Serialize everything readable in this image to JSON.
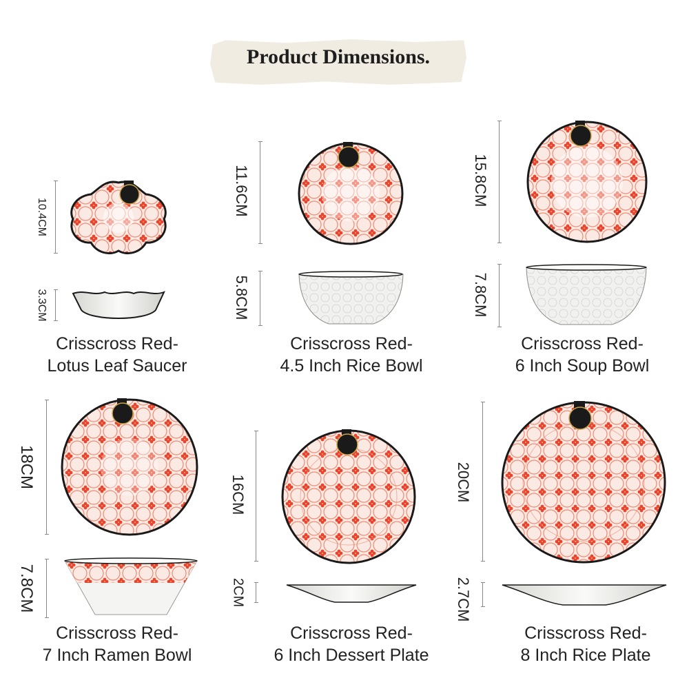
{
  "header": {
    "title": "Product Dimensions."
  },
  "products": [
    {
      "line1": "Crisscross Red-",
      "line2": "Lotus Leaf Saucer",
      "top_dim": "10.4CM",
      "side_dim": "3.3CM"
    },
    {
      "line1": "Crisscross Red-",
      "line2": "4.5 Inch Rice Bowl",
      "top_dim": "11.6CM",
      "side_dim": "5.8CM"
    },
    {
      "line1": "Crisscross Red-",
      "line2": "6 Inch Soup Bowl",
      "top_dim": "15.8CM",
      "side_dim": "7.8CM"
    },
    {
      "line1": "Crisscross Red-",
      "line2": "7 Inch Ramen Bowl",
      "top_dim": "18CM",
      "side_dim": "7.8CM"
    },
    {
      "line1": "Crisscross Red-",
      "line2": "6 Inch Dessert Plate",
      "top_dim": "16CM",
      "side_dim": "2CM"
    },
    {
      "line1": "Crisscross Red-",
      "line2": "8 Inch Rice Plate",
      "top_dim": "20CM",
      "side_dim": "2.7CM"
    }
  ],
  "colors": {
    "pattern_red": "#e8452c",
    "rim": "#1a1a1a",
    "band": "#f1ece2",
    "glaze": "#f2f2f0"
  }
}
